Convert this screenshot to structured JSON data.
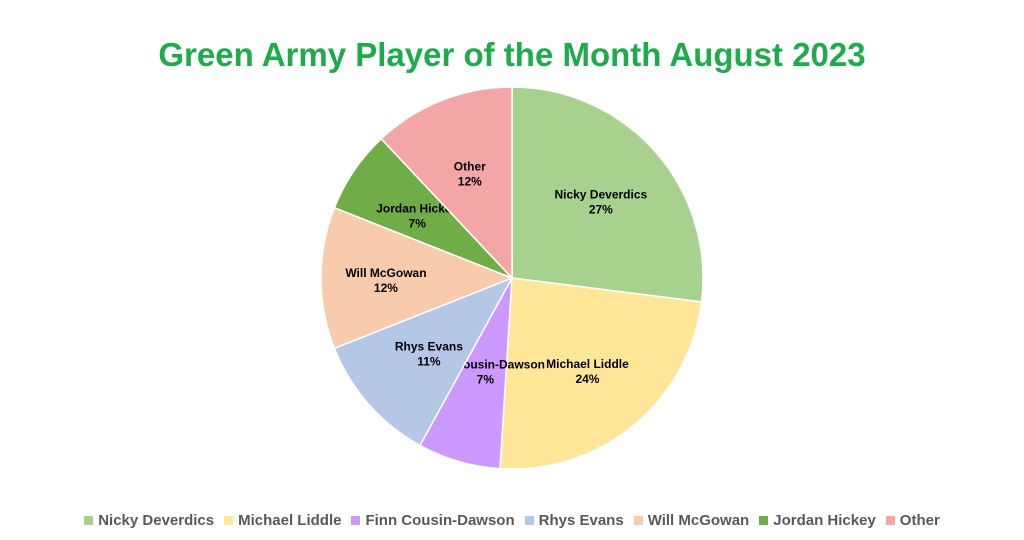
{
  "chart_data": {
    "type": "pie",
    "title": "Green Army Player of the Month August 2023",
    "slices": [
      {
        "label": "Nicky Deverdics",
        "value": 27,
        "pct_label": "27%",
        "color": "#A9D18E"
      },
      {
        "label": "Michael Liddle",
        "value": 24,
        "pct_label": "24%",
        "color": "#FFE699"
      },
      {
        "label": "Finn Cousin-Dawson",
        "value": 7,
        "pct_label": "7%",
        "color": "#CC99FF"
      },
      {
        "label": "Rhys Evans",
        "value": 11,
        "pct_label": "11%",
        "color": "#B4C7E7"
      },
      {
        "label": "Will McGowan",
        "value": 12,
        "pct_label": "12%",
        "color": "#F8CBAD"
      },
      {
        "label": "Jordan Hickey",
        "value": 7,
        "pct_label": "7%",
        "color": "#70AD47"
      },
      {
        "label": "Other",
        "value": 12,
        "pct_label": "12%",
        "color": "#F4A6A6"
      }
    ],
    "legend_position": "bottom",
    "start_angle": "12 o'clock",
    "direction": "clockwise"
  }
}
